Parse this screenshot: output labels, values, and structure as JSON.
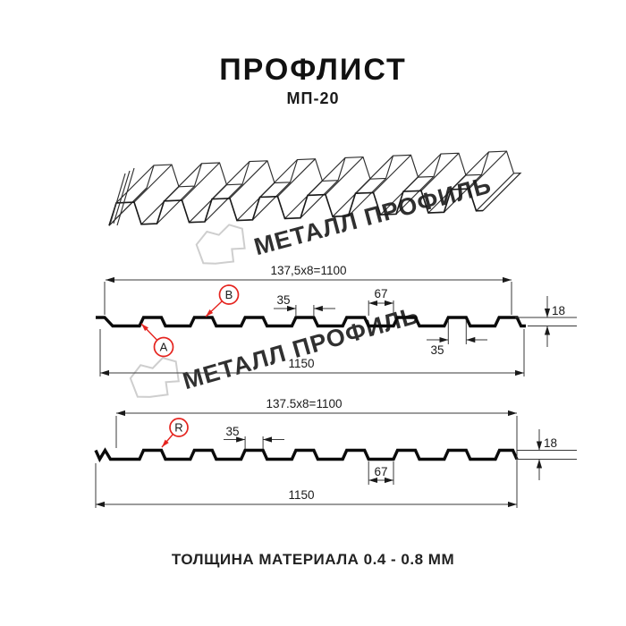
{
  "header": {
    "title": "ПРОФЛИСТ",
    "subtitle": "МП-20"
  },
  "watermark": {
    "text": "МЕТАЛЛ ПРОФИЛЬ"
  },
  "profile1": {
    "working_width": "137,5x8=1100",
    "total_width": "1150",
    "rib_top_width": "35",
    "valley_width": "67",
    "rib_bottom_width": "35",
    "height": "18",
    "marker_a": "A",
    "marker_b": "B"
  },
  "profile2": {
    "working_width": "137.5x8=1100",
    "total_width": "1150",
    "rib_top_width": "35",
    "valley_width": "67",
    "height": "18",
    "marker_r": "R"
  },
  "footer": {
    "note": "ТОЛЩИНА МАТЕРИАЛА 0.4 - 0.8 ММ"
  },
  "colors": {
    "accent_red": "#e5241f",
    "line": "#1a1a1a",
    "watermark": "#c9c9c9"
  }
}
